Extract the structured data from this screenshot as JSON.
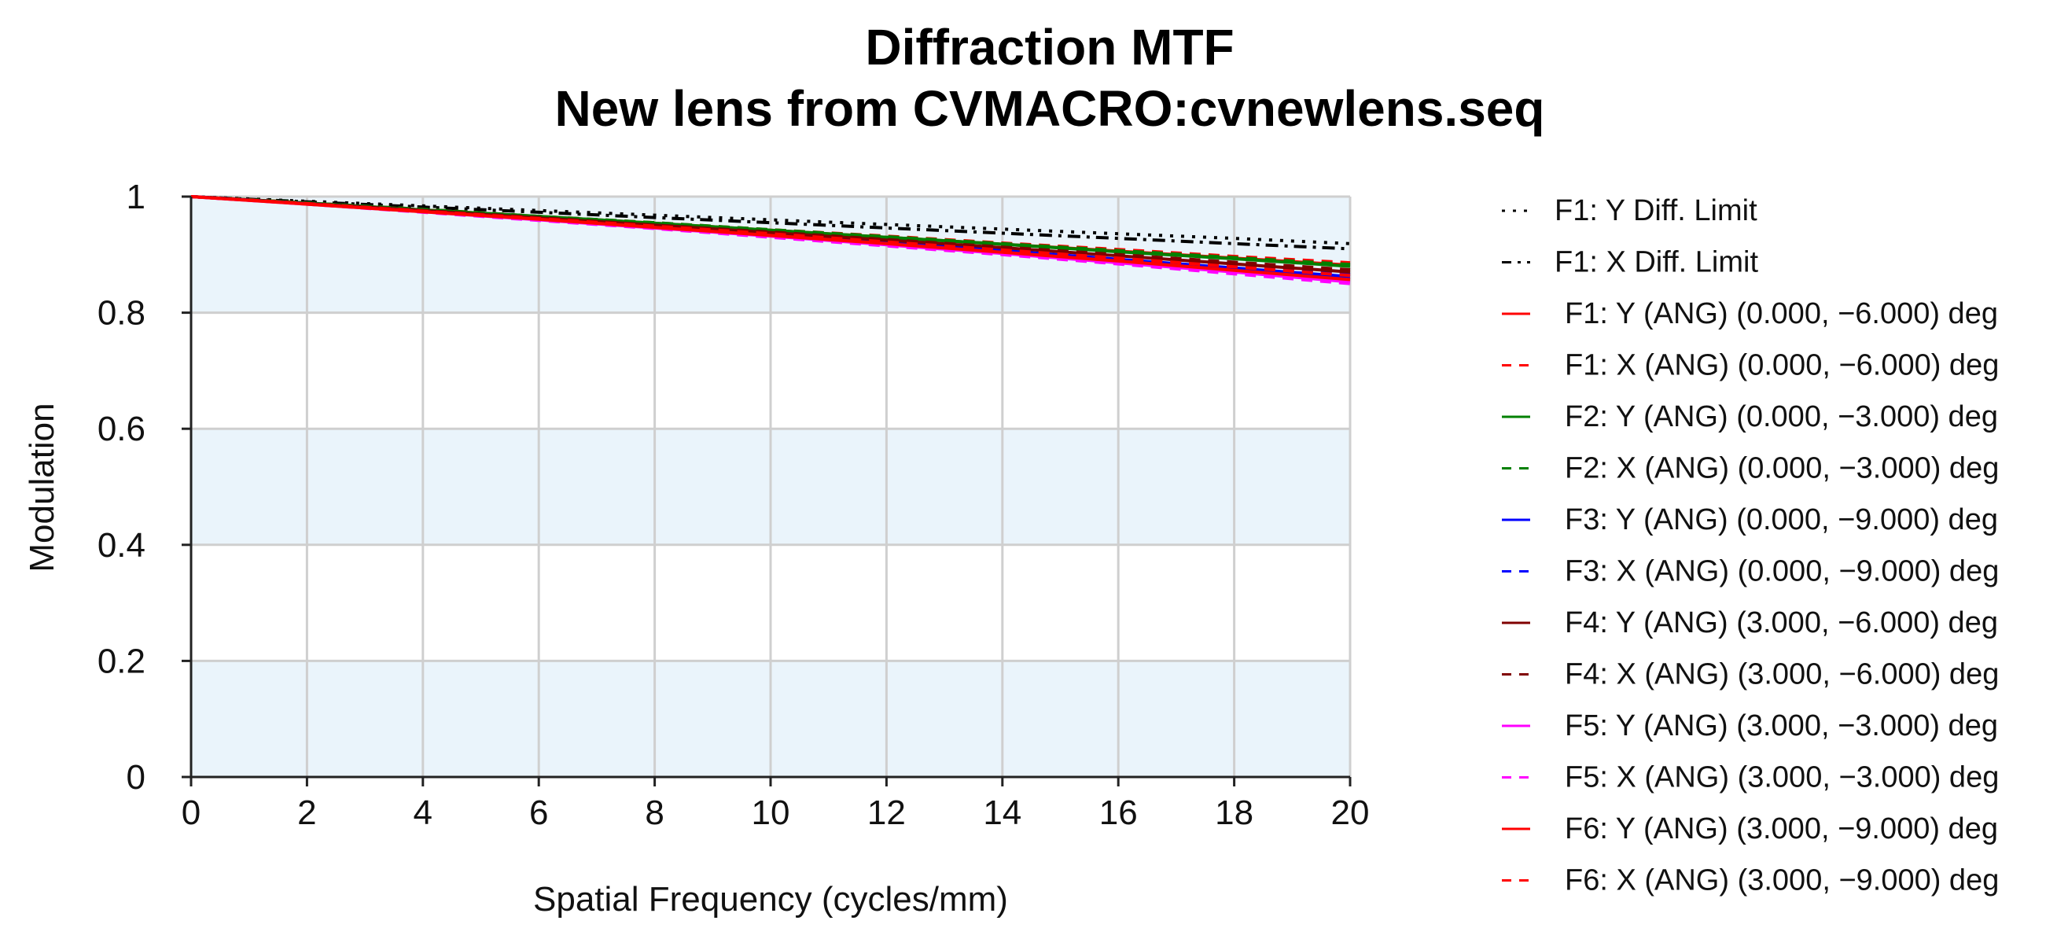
{
  "chart_data": {
    "type": "line",
    "title": "Diffraction MTF",
    "subtitle": "New lens from CVMACRO:cvnewlens.seq",
    "xlabel": "Spatial Frequency (cycles/mm)",
    "ylabel": "Modulation",
    "xlim": [
      0,
      20
    ],
    "ylim": [
      0,
      1
    ],
    "xticks": [
      0,
      2,
      4,
      6,
      8,
      10,
      12,
      14,
      16,
      18,
      20
    ],
    "yticks": [
      0,
      0.2,
      0.4,
      0.6,
      0.8,
      1
    ],
    "ytick_labels": [
      "0",
      "0.2",
      "0.4",
      "0.6",
      "0.8",
      "1"
    ],
    "grid": true,
    "legend_position": "right",
    "x": [
      0,
      2,
      4,
      6,
      8,
      10,
      12,
      14,
      16,
      18,
      20
    ],
    "series": [
      {
        "name": "F1: Y Diff. Limit",
        "color": "#000000",
        "dash": "dot",
        "values": [
          1.0,
          0.992,
          0.984,
          0.976,
          0.968,
          0.96,
          0.952,
          0.944,
          0.936,
          0.928,
          0.919
        ]
      },
      {
        "name": "F1: X Diff. Limit",
        "color": "#000000",
        "dash": "dashdot",
        "values": [
          1.0,
          0.991,
          0.982,
          0.973,
          0.964,
          0.955,
          0.946,
          0.937,
          0.928,
          0.919,
          0.91
        ]
      },
      {
        "name": "F1: Y (ANG) (0.000, −6.000) deg",
        "color": "#ff0000",
        "dash": "solid",
        "values": [
          1.0,
          0.989,
          0.977,
          0.966,
          0.954,
          0.942,
          0.93,
          0.918,
          0.906,
          0.894,
          0.882
        ]
      },
      {
        "name": "F1: X (ANG) (0.000, −6.000) deg",
        "color": "#ff0000",
        "dash": "dash",
        "values": [
          1.0,
          0.989,
          0.978,
          0.966,
          0.955,
          0.943,
          0.932,
          0.92,
          0.909,
          0.897,
          0.886
        ]
      },
      {
        "name": "F2: Y (ANG) (0.000, −3.000) deg",
        "color": "#008000",
        "dash": "solid",
        "values": [
          1.0,
          0.989,
          0.977,
          0.966,
          0.954,
          0.942,
          0.93,
          0.918,
          0.905,
          0.893,
          0.88
        ]
      },
      {
        "name": "F2: X (ANG) (0.000, −3.000) deg",
        "color": "#008000",
        "dash": "dash",
        "values": [
          1.0,
          0.989,
          0.978,
          0.966,
          0.955,
          0.943,
          0.931,
          0.919,
          0.907,
          0.895,
          0.883
        ]
      },
      {
        "name": "F3: Y (ANG) (0.000, −9.000) deg",
        "color": "#0000ff",
        "dash": "solid",
        "values": [
          1.0,
          0.988,
          0.975,
          0.962,
          0.949,
          0.935,
          0.921,
          0.907,
          0.892,
          0.877,
          0.862
        ]
      },
      {
        "name": "F3: X (ANG) (0.000, −9.000) deg",
        "color": "#0000ff",
        "dash": "dash",
        "values": [
          1.0,
          0.988,
          0.976,
          0.963,
          0.95,
          0.937,
          0.923,
          0.909,
          0.895,
          0.88,
          0.866
        ]
      },
      {
        "name": "F4: Y (ANG) (3.000, −6.000) deg",
        "color": "#800000",
        "dash": "solid",
        "values": [
          1.0,
          0.988,
          0.976,
          0.963,
          0.951,
          0.938,
          0.925,
          0.912,
          0.898,
          0.884,
          0.87
        ]
      },
      {
        "name": "F4: X (ANG) (3.000, −6.000) deg",
        "color": "#800000",
        "dash": "dash",
        "values": [
          1.0,
          0.988,
          0.976,
          0.964,
          0.951,
          0.939,
          0.926,
          0.913,
          0.9,
          0.887,
          0.874
        ]
      },
      {
        "name": "F5: Y (ANG) (3.000, −3.000) deg",
        "color": "#ff00ff",
        "dash": "solid",
        "values": [
          1.0,
          0.987,
          0.974,
          0.96,
          0.946,
          0.932,
          0.917,
          0.902,
          0.886,
          0.87,
          0.853
        ]
      },
      {
        "name": "F5: X (ANG) (3.000, −3.000) deg",
        "color": "#ff00ff",
        "dash": "dash",
        "values": [
          1.0,
          0.987,
          0.973,
          0.959,
          0.945,
          0.93,
          0.915,
          0.9,
          0.884,
          0.867,
          0.85
        ]
      },
      {
        "name": "F6: Y (ANG) (3.000, −9.000) deg",
        "color": "#ff0000",
        "dash": "solid",
        "values": [
          1.0,
          0.987,
          0.974,
          0.961,
          0.947,
          0.933,
          0.919,
          0.904,
          0.889,
          0.873,
          0.857
        ]
      },
      {
        "name": "F6: X (ANG) (3.000, −9.000) deg",
        "color": "#ff0000",
        "dash": "dash",
        "values": [
          1.0,
          0.988,
          0.975,
          0.962,
          0.949,
          0.936,
          0.922,
          0.908,
          0.894,
          0.879,
          0.864
        ]
      }
    ]
  }
}
